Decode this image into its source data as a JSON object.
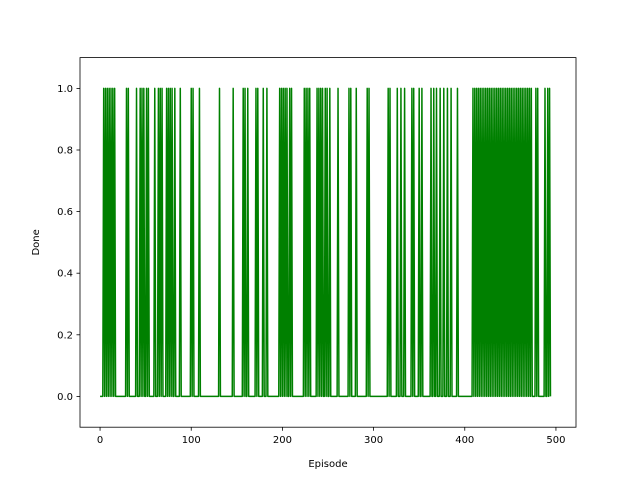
{
  "chart_data": {
    "type": "line",
    "title": "",
    "xlabel": "Episode",
    "ylabel": "Done",
    "xlim": [
      -22,
      522
    ],
    "ylim": [
      -0.1,
      1.1
    ],
    "x_ticks": [
      0,
      100,
      200,
      300,
      400,
      500
    ],
    "y_ticks": [
      0.0,
      0.2,
      0.4,
      0.6,
      0.8,
      1.0
    ],
    "x_tick_labels": [
      "0",
      "100",
      "200",
      "300",
      "400",
      "500"
    ],
    "y_tick_labels": [
      "0.0",
      "0.2",
      "0.4",
      "0.6",
      "0.8",
      "1.0"
    ],
    "grid": false,
    "legend": "none",
    "color": "#008000",
    "x_range": [
      0,
      494
    ],
    "series": [
      {
        "default": 0,
        "done_episodes": [
          4,
          6,
          8,
          10,
          12,
          14,
          16,
          29,
          31,
          40,
          44,
          46,
          48,
          51,
          53,
          60,
          64,
          66,
          68,
          73,
          75,
          77,
          79,
          82,
          88,
          100,
          102,
          109,
          131,
          146,
          157,
          159,
          162,
          171,
          173,
          179,
          183,
          197,
          199,
          201,
          203,
          205,
          208,
          210,
          224,
          226,
          228,
          230,
          238,
          240,
          242,
          244,
          247,
          249,
          252,
          261,
          273,
          275,
          281,
          293,
          295,
          316,
          318,
          326,
          330,
          334,
          342,
          344,
          350,
          353,
          363,
          366,
          369,
          373,
          377,
          381,
          385,
          392,
          409,
          411,
          413,
          415,
          417,
          419,
          421,
          423,
          425,
          427,
          429,
          431,
          433,
          435,
          437,
          439,
          441,
          443,
          445,
          447,
          449,
          451,
          453,
          455,
          457,
          459,
          461,
          463,
          465,
          467,
          469,
          471,
          473,
          478,
          480,
          488,
          491,
          493
        ]
      }
    ]
  }
}
